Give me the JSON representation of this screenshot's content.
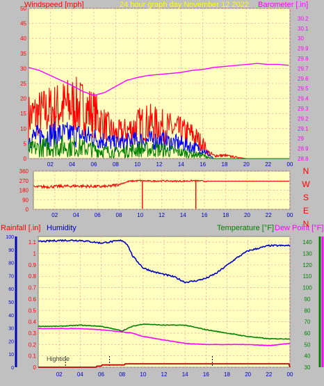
{
  "colors": {
    "background": "#c0c0c0",
    "plot_bg": "#ffffc0",
    "grid": "#ff9f9f",
    "wind_avg": "#008000",
    "wind_mid": "#0000ff",
    "wind_gust": "#ff0000",
    "barometer": "#ff00ff",
    "direction": "#ff0000",
    "rain": "#c00000",
    "humidity": "#0000c0",
    "temperature": "#008000",
    "dewpoint": "#ff00ff",
    "tide_marker": "#000000",
    "title": "#ffff00"
  },
  "chart_data": [
    {
      "type": "line",
      "panel": "wind-barometer",
      "title": "24 hour graph day   November 12 2022",
      "ylabel_left": "Windspeed [mph]",
      "ylabel_right": "Barometer [.in]",
      "x_ticks": [
        "02",
        "04",
        "06",
        "08",
        "10",
        "12",
        "14",
        "16",
        "18",
        "20",
        "22",
        "00"
      ],
      "xlim_hours": [
        0,
        24
      ],
      "ylim_left": [
        0,
        50
      ],
      "y_ticks_left": [
        0,
        5,
        10,
        15,
        20,
        25,
        30,
        35,
        40,
        45,
        50
      ],
      "ylim_right": [
        28.8,
        30.3
      ],
      "y_ticks_right": [
        "28.8",
        "28.9",
        "29",
        "29.1",
        "29.2",
        "29.3",
        "29.4",
        "29.5",
        "29.6",
        "29.7",
        "29.8",
        "29.9",
        "30",
        "30.1",
        "30.2"
      ],
      "grid": true,
      "series": [
        {
          "name": "Barometer",
          "axis": "right",
          "x": [
            0,
            1,
            2,
            3,
            4,
            5,
            6,
            7,
            8,
            9,
            10,
            11,
            12,
            13,
            14,
            15,
            16,
            17,
            18,
            19,
            20,
            21,
            22,
            23,
            24
          ],
          "values": [
            29.71,
            29.68,
            29.63,
            29.58,
            29.53,
            29.47,
            29.43,
            29.46,
            29.52,
            29.58,
            29.61,
            29.63,
            29.64,
            29.65,
            29.66,
            29.68,
            29.69,
            29.71,
            29.72,
            29.73,
            29.74,
            29.75,
            29.74,
            29.74,
            29.73
          ]
        },
        {
          "name": "Wind gust",
          "axis": "left",
          "x": [
            0,
            1,
            2,
            3,
            4,
            5,
            6,
            7,
            8,
            9,
            10,
            11,
            12,
            13,
            14,
            15,
            16,
            16.5,
            17,
            18,
            19,
            20,
            24
          ],
          "values": [
            14,
            15,
            16,
            17,
            18,
            17,
            15,
            11,
            8,
            9,
            11,
            12,
            11,
            10,
            9,
            8,
            5,
            2,
            1,
            1,
            0.5,
            0,
            0
          ]
        },
        {
          "name": "Wind mid",
          "axis": "left",
          "x": [
            0,
            2,
            4,
            6,
            8,
            10,
            12,
            14,
            16,
            17,
            24
          ],
          "values": [
            7,
            8,
            8,
            7,
            5,
            6,
            6,
            5,
            3,
            0,
            0
          ]
        },
        {
          "name": "Wind average",
          "axis": "left",
          "x": [
            0,
            2,
            4,
            6,
            8,
            10,
            12,
            14,
            16,
            17,
            24
          ],
          "values": [
            3,
            4,
            4,
            3,
            2,
            3,
            3,
            2,
            1,
            0,
            0
          ]
        }
      ]
    },
    {
      "type": "line",
      "panel": "wind-direction",
      "ylim": [
        0,
        360
      ],
      "y_ticks": [
        0,
        90,
        180,
        270,
        360
      ],
      "compass_labels": [
        "N",
        "W",
        "S",
        "E",
        "N"
      ],
      "x_ticks": [
        "02",
        "04",
        "06",
        "08",
        "10",
        "12",
        "14",
        "16",
        "18",
        "20",
        "22",
        "00"
      ],
      "series": [
        {
          "name": "Wind direction",
          "x": [
            0,
            2,
            4,
            6,
            7,
            8,
            9,
            10,
            11,
            12,
            13,
            14,
            15,
            16,
            17,
            20,
            24
          ],
          "values": [
            210,
            215,
            220,
            215,
            215,
            235,
            265,
            270,
            265,
            268,
            265,
            265,
            270,
            265,
            265,
            265,
            265
          ]
        }
      ],
      "dips": [
        {
          "x": 10.2,
          "to": 5
        },
        {
          "x": 15.2,
          "to": 5
        }
      ]
    },
    {
      "type": "line",
      "panel": "rain-humidity-temperature",
      "ylabel_left_rain": "Rainfall [.in]",
      "ylabel_left_humidity": "Humidity",
      "ylabel_right_temp": "Temperature [°F]",
      "ylabel_right_dew": "Dew Point [°F]",
      "annotation": "Hightide",
      "x_ticks": [
        "02",
        "04",
        "06",
        "08",
        "10",
        "12",
        "14",
        "16",
        "18",
        "20",
        "22",
        "00"
      ],
      "ylim_humidity": [
        0,
        100
      ],
      "y_ticks_humidity": [
        0,
        10,
        20,
        30,
        40,
        50,
        60,
        70,
        80,
        90,
        100
      ],
      "ylim_rain": [
        0,
        1.15
      ],
      "y_ticks_rain": [
        "0",
        "0.1",
        "0.2",
        "0.3",
        "0.4",
        "0.5",
        "0.6",
        "0.7",
        "0.8",
        "0.9",
        "1",
        "1.1"
      ],
      "ylim_temp": [
        30,
        145
      ],
      "y_ticks_temp": [
        30,
        40,
        50,
        60,
        70,
        80,
        90,
        100,
        110,
        120,
        130,
        140
      ],
      "tide_marks_hours": [
        2.6,
        6.8,
        16.6
      ],
      "series": [
        {
          "name": "Humidity",
          "axis": "humidity",
          "x": [
            0,
            2,
            4,
            6,
            8,
            8.5,
            9,
            10,
            11,
            12,
            13,
            14,
            15,
            16,
            17,
            18,
            19,
            20,
            21,
            22,
            23,
            24
          ],
          "values": [
            96,
            97,
            97,
            95,
            97,
            94,
            85,
            76,
            73,
            71,
            69,
            65,
            66,
            68,
            72,
            78,
            84,
            89,
            91,
            93,
            93,
            93
          ]
        },
        {
          "name": "Temperature",
          "axis": "temp",
          "x": [
            0,
            2,
            4,
            6,
            8,
            9,
            10,
            12,
            14,
            16,
            18,
            20,
            22,
            24
          ],
          "values": [
            66,
            66,
            67,
            66,
            62,
            66,
            68,
            67,
            67,
            63,
            60,
            57,
            55,
            55
          ]
        },
        {
          "name": "Dew Point",
          "axis": "temp",
          "x": [
            0,
            2,
            4,
            6,
            8,
            9,
            10,
            12,
            14,
            16,
            18,
            20,
            22,
            24
          ],
          "values": [
            64,
            64,
            64,
            63,
            61,
            60,
            57,
            54,
            51,
            50,
            50,
            50,
            49,
            51
          ]
        },
        {
          "name": "Rainfall",
          "axis": "rain",
          "x": [
            0,
            5.5,
            5.6,
            6,
            6.1,
            8.2,
            8.3,
            9,
            10,
            14,
            18,
            23.9,
            24
          ],
          "values": [
            0,
            0,
            0.01,
            0.01,
            0.02,
            0.02,
            0.03,
            0.03,
            0.03,
            0.03,
            0.03,
            0.03,
            0
          ]
        }
      ]
    }
  ]
}
